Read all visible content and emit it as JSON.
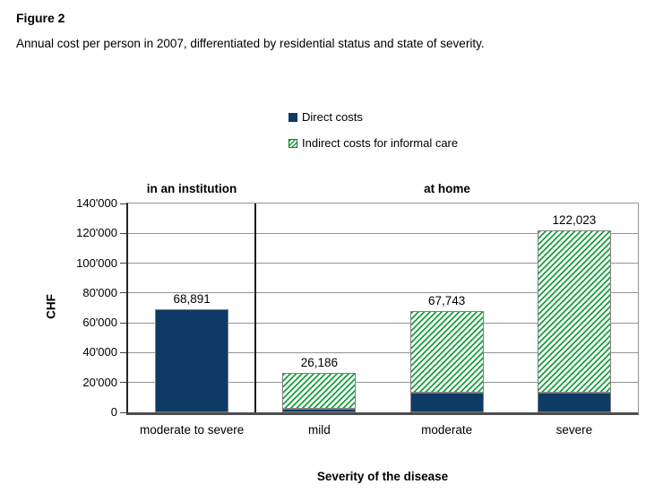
{
  "figure": {
    "label": "Figure 2",
    "caption": "Annual cost per person in 2007, differentiated by residential status and state of severity."
  },
  "chart_data": {
    "type": "bar",
    "stacked": true,
    "title": "Figure 2",
    "caption": "Annual cost per person in 2007, differentiated by residential status and state of severity.",
    "xlabel": "Severity of the disease",
    "ylabel": "CHF",
    "ylim": [
      0,
      140000
    ],
    "ytick_step": 20000,
    "ytick_labels": [
      "0",
      "20'000",
      "40'000",
      "60'000",
      "80'000",
      "100'000",
      "120'000",
      "140'000"
    ],
    "grid": true,
    "legend_position": "top-center",
    "groups": [
      {
        "header": "in an institution",
        "categories": [
          "moderate to severe"
        ]
      },
      {
        "header": "at home",
        "categories": [
          "mild",
          "moderate",
          "severe"
        ]
      }
    ],
    "categories": [
      "moderate to severe",
      "mild",
      "moderate",
      "severe"
    ],
    "series": [
      {
        "name": "Direct costs",
        "color": "#0E3A66",
        "pattern": "solid",
        "values": [
          68891,
          2400,
          13300,
          13300
        ]
      },
      {
        "name": "Indirect costs for informal care",
        "color": "#15A03C",
        "pattern": "diagonal-hatch",
        "values": [
          0,
          23786,
          54443,
          108723
        ]
      }
    ],
    "totals": [
      68891,
      26186,
      67743,
      122023
    ],
    "total_labels": [
      "68,891",
      "26,186",
      "67,743",
      "122,023"
    ]
  },
  "colors": {
    "direct": "#0E3A66",
    "indirect_hatch": "#15A03C",
    "indirect_border": "#0E7A2B",
    "bar_border": "#808080",
    "gridline": "#949494",
    "axis": "#262626",
    "divider": "#1A1A1A",
    "text": "#000000",
    "background": "#FFFFFF"
  }
}
